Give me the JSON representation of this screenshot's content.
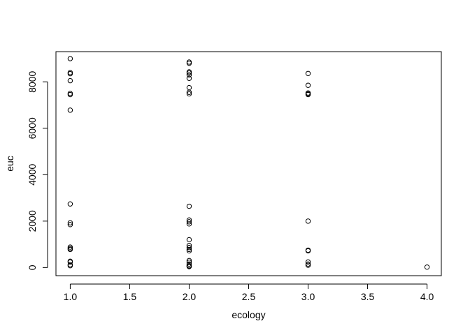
{
  "chart_data": {
    "type": "scatter",
    "title": "",
    "xlabel": "ecology",
    "ylabel": "euc",
    "xlim": [
      0.88,
      4.12
    ],
    "ylim": [
      -350,
      9300
    ],
    "xticks": [
      "1.0",
      "1.5",
      "2.0",
      "2.5",
      "3.0",
      "3.5",
      "4.0"
    ],
    "xtick_values": [
      1.0,
      1.5,
      2.0,
      2.5,
      3.0,
      3.5,
      4.0
    ],
    "yticks": [
      "0",
      "2000",
      "4000",
      "6000",
      "8000"
    ],
    "ytick_values": [
      0,
      2000,
      4000,
      6000,
      8000
    ],
    "grid": false,
    "legend": "none",
    "marker": "open-circle",
    "x": [
      1,
      1,
      1,
      1,
      1,
      1,
      1,
      1,
      1,
      1,
      1,
      1,
      1,
      1,
      1,
      1,
      1,
      2,
      2,
      2,
      2,
      2,
      2,
      2,
      2,
      2,
      2,
      2,
      2,
      2,
      2,
      2,
      2,
      2,
      2,
      2,
      2,
      2,
      2,
      2,
      2,
      3,
      3,
      3,
      3,
      3,
      3,
      3,
      3,
      3,
      3,
      3,
      4
    ],
    "y": [
      9000,
      8400,
      8350,
      8050,
      7500,
      7450,
      6780,
      2740,
      1930,
      1850,
      880,
      820,
      780,
      270,
      240,
      120,
      80,
      8850,
      8800,
      8430,
      8380,
      8300,
      8150,
      7750,
      7550,
      7480,
      2640,
      2050,
      1970,
      1880,
      1200,
      950,
      860,
      780,
      720,
      300,
      230,
      150,
      80,
      60,
      40,
      8360,
      7850,
      7520,
      7480,
      7450,
      2000,
      750,
      720,
      240,
      150,
      100,
      20
    ]
  }
}
